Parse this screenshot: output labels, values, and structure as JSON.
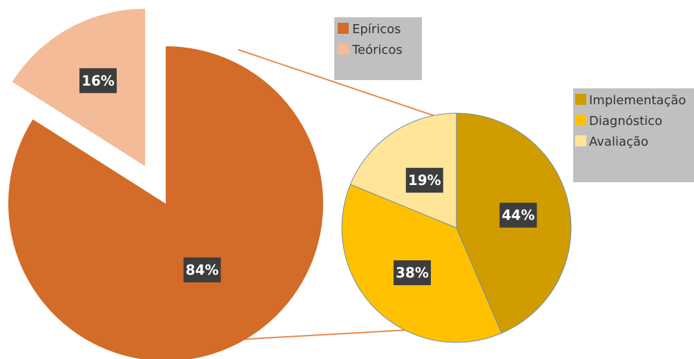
{
  "chart_data": [
    {
      "type": "pie",
      "categories": [
        "Epíricos",
        "Teóricos"
      ],
      "values": [
        84,
        16
      ],
      "labels": [
        "84%",
        "16%"
      ],
      "colors": [
        "#d26c28",
        "#f3bb98"
      ],
      "legend_position": "top-right"
    },
    {
      "type": "pie",
      "categories": [
        "Implementação",
        "Diagnóstico",
        "Avaliação"
      ],
      "values": [
        44,
        38,
        19
      ],
      "labels": [
        "44%",
        "38%",
        "19%"
      ],
      "colors": [
        "#d09c00",
        "#ffc000",
        "#ffe598"
      ],
      "legend_position": "right"
    }
  ]
}
